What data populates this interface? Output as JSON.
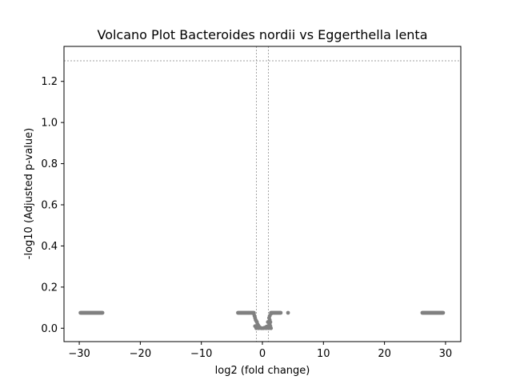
{
  "chart_data": {
    "type": "scatter",
    "title": "Volcano Plot Bacteroides nordii vs Eggerthella lenta",
    "xlabel": "log2 (fold change)",
    "ylabel": "-log10 (Adjusted p-value)",
    "xlim": [
      -32.5,
      32.5
    ],
    "ylim": [
      -0.065,
      1.37
    ],
    "x_ticks": [
      -30,
      -20,
      -10,
      0,
      10,
      20,
      30
    ],
    "x_tick_labels": [
      "−30",
      "−20",
      "−10",
      "0",
      "10",
      "20",
      "30"
    ],
    "y_ticks": [
      0.0,
      0.2,
      0.4,
      0.6,
      0.8,
      1.0,
      1.2
    ],
    "y_tick_labels": [
      "0.0",
      "0.2",
      "0.4",
      "0.6",
      "0.8",
      "1.0",
      "1.2"
    ],
    "thresholds": {
      "x": [
        -1,
        1
      ],
      "y": 1.3
    },
    "grid": false,
    "point_color": "#808080",
    "threshold_color": "#808080",
    "clusters": [
      {
        "x_range": [
          -29.8,
          -26.2
        ],
        "y": 0.075
      },
      {
        "x_range": [
          26.2,
          29.6
        ],
        "y": 0.075
      },
      {
        "x_range": [
          -4.0,
          -1.4
        ],
        "y": 0.075
      },
      {
        "x_range": [
          1.4,
          3.0
        ],
        "y": 0.075
      }
    ],
    "points": [
      [
        -1.3,
        0.06
      ],
      [
        -1.2,
        0.05
      ],
      [
        -1.1,
        0.04
      ],
      [
        -1.0,
        0.035
      ],
      [
        -0.9,
        0.03
      ],
      [
        -0.8,
        0.02
      ],
      [
        -0.7,
        0.015
      ],
      [
        -0.6,
        0.01
      ],
      [
        -0.5,
        0.005
      ],
      [
        -0.3,
        0.002
      ],
      [
        0.0,
        0.0
      ],
      [
        0.3,
        0.002
      ],
      [
        0.5,
        0.004
      ],
      [
        0.7,
        0.008
      ],
      [
        0.9,
        0.01
      ],
      [
        1.1,
        0.015
      ],
      [
        1.2,
        0.02
      ],
      [
        1.3,
        0.03
      ],
      [
        1.2,
        0.04
      ],
      [
        1.1,
        0.05
      ],
      [
        -1.4,
        0.07
      ],
      [
        1.4,
        0.07
      ],
      [
        -0.2,
        0.0
      ],
      [
        0.2,
        0.0
      ],
      [
        -0.6,
        0.0
      ],
      [
        0.6,
        0.0
      ],
      [
        -1.0,
        0.0
      ],
      [
        1.0,
        0.0
      ],
      [
        1.4,
        0.0
      ],
      [
        -1.2,
        0.01
      ],
      [
        1.3,
        0.01
      ],
      [
        0.9,
        0.03
      ],
      [
        1.2,
        0.06
      ],
      [
        4.2,
        0.075
      ]
    ]
  }
}
